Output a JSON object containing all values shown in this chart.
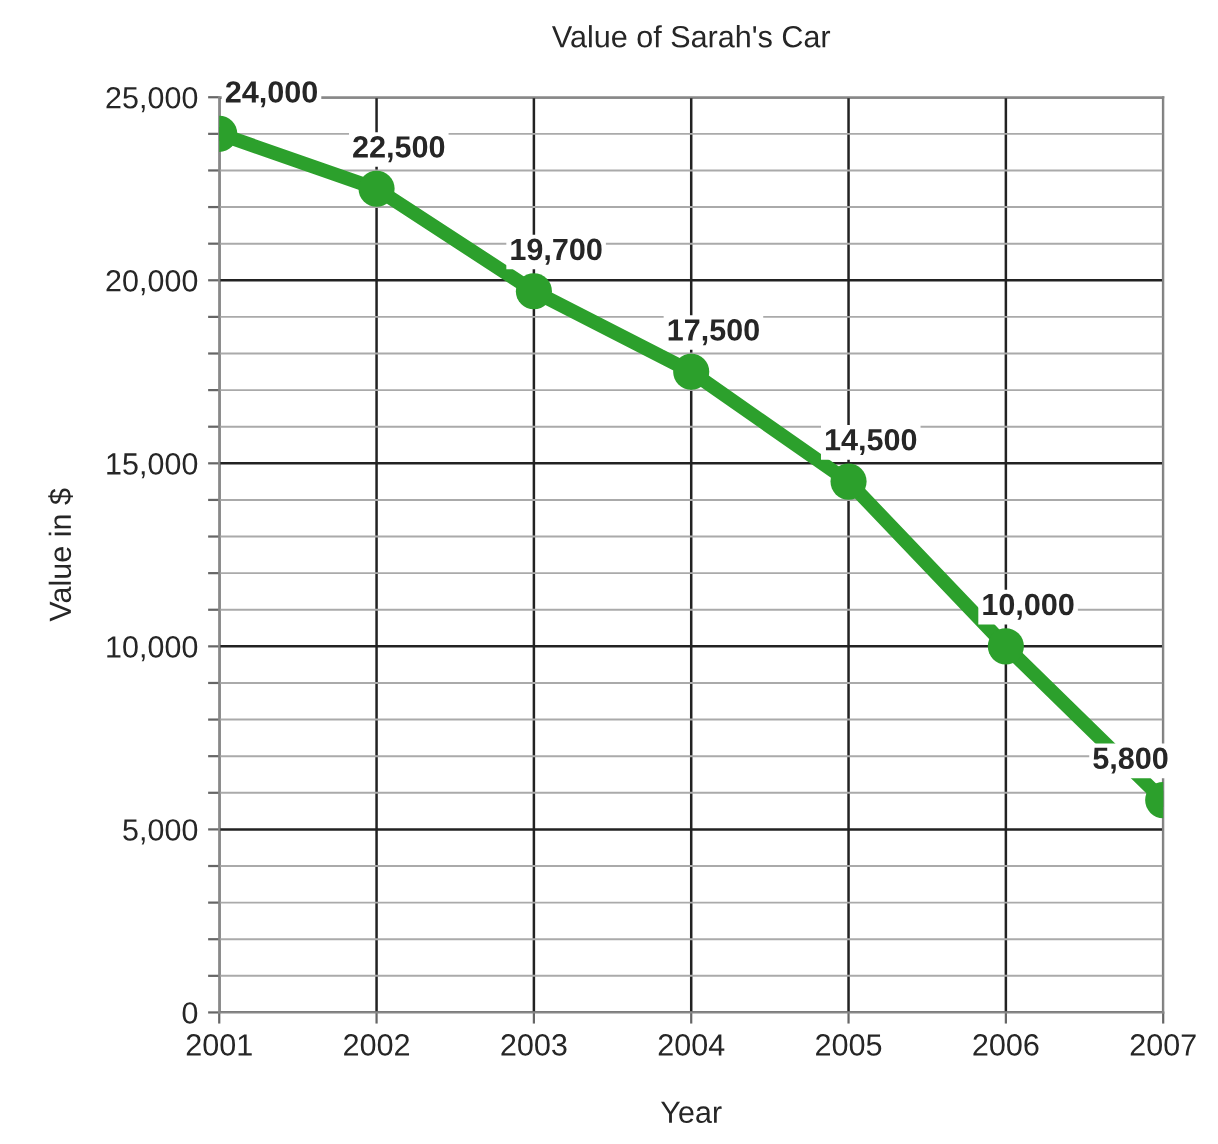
{
  "chart_data": {
    "type": "line",
    "title": "Value of Sarah's Car",
    "xlabel": "Year",
    "ylabel": "Value in $",
    "x": [
      2001,
      2002,
      2003,
      2004,
      2005,
      2006,
      2007
    ],
    "series": [
      {
        "color": "#2ca02c",
        "values": [
          24000,
          22500,
          19700,
          17500,
          14500,
          10000,
          5800
        ],
        "value_labels": [
          "24,000",
          "22,500",
          "19,700",
          "17,500",
          "14,500",
          "10,000",
          "5,800"
        ]
      }
    ],
    "xlim": [
      2001,
      2007
    ],
    "xticks": [
      2001,
      2002,
      2003,
      2004,
      2005,
      2006,
      2007
    ],
    "ylim": [
      0,
      25000
    ],
    "yticks": [
      {
        "value": 0,
        "label": "0"
      },
      {
        "value": 1000,
        "label": null
      },
      {
        "value": 2000,
        "label": null
      },
      {
        "value": 3000,
        "label": null
      },
      {
        "value": 4000,
        "label": null
      },
      {
        "value": 5000,
        "label": "5,000"
      },
      {
        "value": 6000,
        "label": null
      },
      {
        "value": 7000,
        "label": null
      },
      {
        "value": 8000,
        "label": null
      },
      {
        "value": 9000,
        "label": null
      },
      {
        "value": 10000,
        "label": "10,000"
      },
      {
        "value": 11000,
        "label": null
      },
      {
        "value": 12000,
        "label": null
      },
      {
        "value": 13000,
        "label": null
      },
      {
        "value": 14000,
        "label": null
      },
      {
        "value": 15000,
        "label": "15,000"
      },
      {
        "value": 16000,
        "label": null
      },
      {
        "value": 17000,
        "label": null
      },
      {
        "value": 18000,
        "label": null
      },
      {
        "value": 19000,
        "label": null
      },
      {
        "value": 20000,
        "label": "20,000"
      },
      {
        "value": 21000,
        "label": null
      },
      {
        "value": 22000,
        "label": null
      },
      {
        "value": 23000,
        "label": null
      },
      {
        "value": 24000,
        "label": null
      },
      {
        "value": 25000,
        "label": "25,000"
      }
    ],
    "grid": true,
    "marker": "circle",
    "line_style": "solid",
    "legend": false
  }
}
